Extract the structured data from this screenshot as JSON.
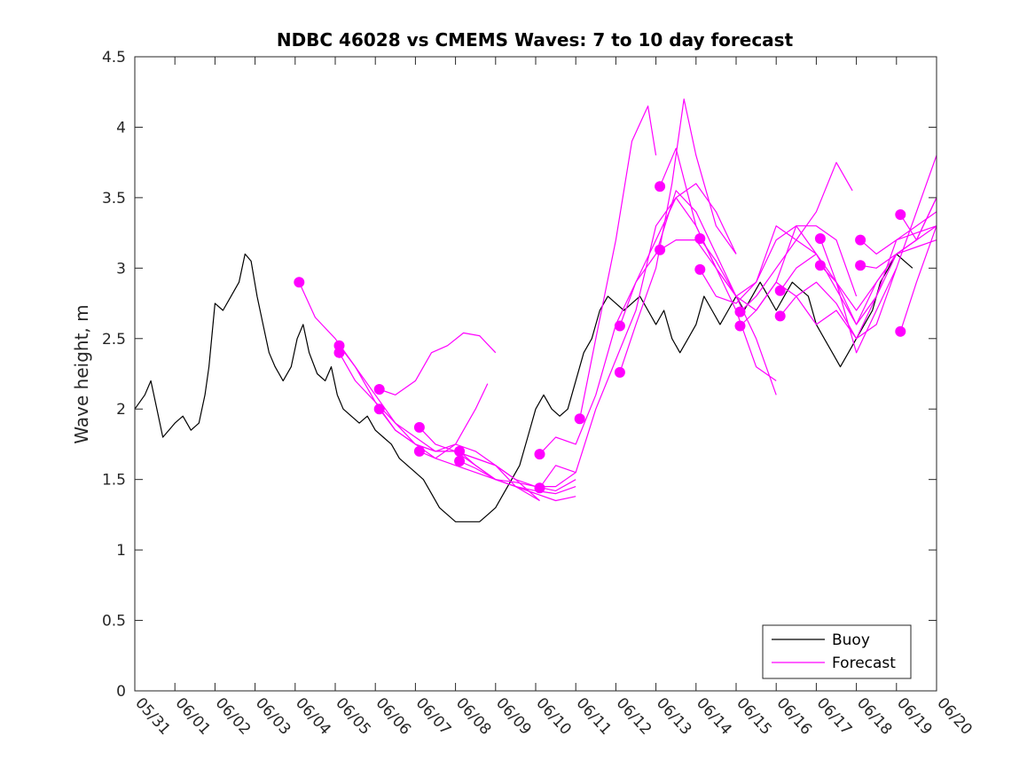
{
  "chart_data": {
    "type": "line",
    "title": "NDBC 46028 vs CMEMS Waves: 7 to 10 day forecast",
    "xlabel": "",
    "ylabel": "Wave height, m",
    "x_ticks": [
      "05/31",
      "06/01",
      "06/02",
      "06/03",
      "06/04",
      "06/05",
      "06/06",
      "06/07",
      "06/08",
      "06/09",
      "06/10",
      "06/11",
      "06/12",
      "06/13",
      "06/14",
      "06/15",
      "06/16",
      "06/17",
      "06/18",
      "06/19",
      "06/20"
    ],
    "x_range_days": [
      0,
      20
    ],
    "ylim": [
      0,
      4.5
    ],
    "y_ticks": [
      "0",
      "0.5",
      "1",
      "1.5",
      "2",
      "2.5",
      "3",
      "3.5",
      "4",
      "4.5"
    ],
    "grid": false,
    "legend": {
      "placement": "bottom-right",
      "entries": [
        "Buoy",
        "Forecast"
      ]
    },
    "colors": {
      "buoy": "#000000",
      "forecast": "#ff00ff"
    },
    "buoy": {
      "name": "Buoy",
      "x": [
        0,
        0.25,
        0.4,
        0.55,
        0.7,
        0.85,
        1.0,
        1.2,
        1.4,
        1.6,
        1.75,
        1.85,
        2.0,
        2.2,
        2.4,
        2.6,
        2.75,
        2.9,
        3.05,
        3.2,
        3.35,
        3.5,
        3.7,
        3.9,
        4.05,
        4.2,
        4.35,
        4.55,
        4.75,
        4.9,
        5.05,
        5.2,
        5.4,
        5.6,
        5.8,
        6.0,
        6.2,
        6.4,
        6.6,
        6.8,
        7.0,
        7.2,
        7.4,
        7.6,
        7.8,
        8.0,
        8.2,
        8.4,
        8.6,
        8.8,
        9.0,
        9.2,
        9.4,
        9.6,
        9.8,
        10.0,
        10.2,
        10.4,
        10.6,
        10.8,
        11.0,
        11.2,
        11.4,
        11.6,
        11.8,
        12.0,
        12.2,
        12.4,
        12.6,
        12.8,
        13.0,
        13.2,
        13.4,
        13.6,
        13.8,
        14.0,
        14.2,
        14.4,
        14.6,
        14.8,
        15.0,
        15.2,
        15.4,
        15.6,
        15.8,
        16.0,
        16.2,
        16.4,
        16.6,
        16.8,
        17.0,
        17.2,
        17.4,
        17.6,
        17.8,
        18.0,
        18.2,
        18.4,
        18.6,
        18.8,
        19.0,
        19.2,
        19.4
      ],
      "y": [
        2.0,
        2.1,
        2.2,
        2.0,
        1.8,
        1.85,
        1.9,
        1.95,
        1.85,
        1.9,
        2.1,
        2.3,
        2.75,
        2.7,
        2.8,
        2.9,
        3.1,
        3.05,
        2.8,
        2.6,
        2.4,
        2.3,
        2.2,
        2.3,
        2.5,
        2.6,
        2.4,
        2.25,
        2.2,
        2.3,
        2.1,
        2.0,
        1.95,
        1.9,
        1.95,
        1.85,
        1.8,
        1.75,
        1.65,
        1.6,
        1.55,
        1.5,
        1.4,
        1.3,
        1.25,
        1.2,
        1.2,
        1.2,
        1.2,
        1.25,
        1.3,
        1.4,
        1.5,
        1.6,
        1.8,
        2.0,
        2.1,
        2.0,
        1.95,
        2.0,
        2.2,
        2.4,
        2.5,
        2.7,
        2.8,
        2.75,
        2.7,
        2.75,
        2.8,
        2.7,
        2.6,
        2.7,
        2.5,
        2.4,
        2.5,
        2.6,
        2.8,
        2.7,
        2.6,
        2.7,
        2.8,
        2.7,
        2.8,
        2.9,
        2.8,
        2.7,
        2.8,
        2.9,
        2.85,
        2.8,
        2.6,
        2.5,
        2.4,
        2.3,
        2.4,
        2.5,
        2.6,
        2.7,
        2.9,
        3.0,
        3.1,
        3.05,
        3.0
      ]
    },
    "forecast_series": [
      {
        "x": [
          4.1,
          4.5,
          5.0,
          5.5,
          6.0,
          6.5,
          7.0,
          7.5,
          8.0,
          8.5,
          9.0,
          9.5,
          10.0
        ],
        "y": [
          2.9,
          2.65,
          2.5,
          2.3,
          2.1,
          1.9,
          1.75,
          1.65,
          1.6,
          1.55,
          1.5,
          1.45,
          1.4
        ]
      },
      {
        "x": [
          5.1,
          5.5,
          6.0,
          6.5,
          7.0,
          7.5,
          8.0,
          8.5,
          9.0,
          9.5,
          10.1
        ],
        "y": [
          2.45,
          2.3,
          2.05,
          1.9,
          1.8,
          1.7,
          1.7,
          1.65,
          1.6,
          1.5,
          1.35
        ]
      },
      {
        "x": [
          5.1,
          5.5,
          6.0,
          6.5,
          7.0,
          7.5,
          8.0,
          8.5,
          9.0,
          9.5,
          10.1
        ],
        "y": [
          2.4,
          2.2,
          2.05,
          1.85,
          1.75,
          1.7,
          1.75,
          1.7,
          1.6,
          1.45,
          1.35
        ]
      },
      {
        "x": [
          6.1,
          6.5,
          7.0,
          7.4,
          7.8,
          8.2,
          8.6,
          9.0
        ],
        "y": [
          2.14,
          2.1,
          2.2,
          2.4,
          2.45,
          2.54,
          2.52,
          2.4
        ]
      },
      {
        "x": [
          6.1,
          6.5,
          7.0,
          7.5,
          8.0,
          8.5,
          9.0,
          9.5,
          10.0,
          10.5,
          11.0
        ],
        "y": [
          2.0,
          1.85,
          1.75,
          1.7,
          1.7,
          1.6,
          1.5,
          1.45,
          1.4,
          1.35,
          1.38
        ]
      },
      {
        "x": [
          7.1,
          7.5,
          8.0,
          8.5,
          9.0,
          9.5,
          10.0,
          10.5,
          11.0
        ],
        "y": [
          1.87,
          1.75,
          1.7,
          1.65,
          1.6,
          1.5,
          1.45,
          1.45,
          1.55
        ]
      },
      {
        "x": [
          7.1,
          7.5,
          8.0,
          8.2,
          8.5,
          8.8
        ],
        "y": [
          1.7,
          1.65,
          1.75,
          1.85,
          2.0,
          2.18
        ]
      },
      {
        "x": [
          8.1,
          8.5,
          9.0,
          9.5,
          10.0,
          10.5,
          11.0
        ],
        "y": [
          1.7,
          1.6,
          1.5,
          1.45,
          1.42,
          1.4,
          1.45
        ]
      },
      {
        "x": [
          8.1,
          8.5,
          9.0,
          9.5,
          10.0,
          10.5,
          11.0
        ],
        "y": [
          1.63,
          1.58,
          1.5,
          1.48,
          1.45,
          1.42,
          1.5
        ]
      },
      {
        "x": [
          10.1,
          10.5,
          11.0,
          11.5,
          12.0,
          12.5,
          13.0,
          13.5,
          14.0,
          14.5,
          15.0
        ],
        "y": [
          1.68,
          1.8,
          1.75,
          2.1,
          2.6,
          2.9,
          3.2,
          3.5,
          3.6,
          3.4,
          3.1
        ]
      },
      {
        "x": [
          10.1,
          10.5,
          11.0,
          11.5,
          12.0,
          12.5,
          13.0,
          13.5,
          14.0,
          14.5,
          15.0
        ],
        "y": [
          1.44,
          1.6,
          1.55,
          2.0,
          2.35,
          2.7,
          3.3,
          3.5,
          3.3,
          3.0,
          2.8
        ]
      },
      {
        "x": [
          11.1,
          11.5,
          12.0,
          12.4,
          12.8,
          13.0
        ],
        "y": [
          1.93,
          2.5,
          3.2,
          3.9,
          4.15,
          3.8
        ]
      },
      {
        "x": [
          12.1,
          12.5,
          13.0,
          13.5,
          14.0,
          14.5,
          15.0,
          15.5,
          16.0
        ],
        "y": [
          2.59,
          2.9,
          3.1,
          3.55,
          3.4,
          3.1,
          2.8,
          2.5,
          2.1
        ]
      },
      {
        "x": [
          12.1,
          12.5,
          13.0,
          13.4,
          13.7,
          14.0,
          14.5,
          15.0
        ],
        "y": [
          2.26,
          2.6,
          3.0,
          3.6,
          4.2,
          3.8,
          3.3,
          3.1
        ]
      },
      {
        "x": [
          13.1,
          13.5,
          14.0,
          14.5,
          15.0,
          15.5,
          16.0
        ],
        "y": [
          3.58,
          3.85,
          3.3,
          3.0,
          2.7,
          2.3,
          2.2
        ]
      },
      {
        "x": [
          13.1,
          13.5,
          14.0,
          14.5,
          15.0,
          15.5,
          16.0,
          16.5,
          17.0
        ],
        "y": [
          3.13,
          3.2,
          3.2,
          3.0,
          2.8,
          2.7,
          2.9,
          3.3,
          3.1
        ]
      },
      {
        "x": [
          14.1,
          14.5,
          15.0,
          15.5,
          16.0,
          16.5,
          17.0,
          17.5,
          17.9
        ],
        "y": [
          3.21,
          3.05,
          2.8,
          2.9,
          3.3,
          3.2,
          3.4,
          3.75,
          3.55
        ]
      },
      {
        "x": [
          14.1,
          14.5,
          15.0,
          15.5,
          16.0,
          16.5,
          17.0,
          17.5,
          18.0
        ],
        "y": [
          2.99,
          2.8,
          2.75,
          2.9,
          3.2,
          3.3,
          3.3,
          3.2,
          2.8
        ]
      },
      {
        "x": [
          15.1,
          15.5,
          16.0,
          16.5,
          17.0,
          17.5,
          18.0,
          18.5,
          19.0
        ],
        "y": [
          2.69,
          2.8,
          3.0,
          3.2,
          3.1,
          2.9,
          2.6,
          2.8,
          3.1
        ]
      },
      {
        "x": [
          15.1,
          15.5,
          16.0,
          16.5,
          17.0,
          17.5,
          18.0,
          18.5,
          19.0
        ],
        "y": [
          2.59,
          2.7,
          2.9,
          2.8,
          2.6,
          2.7,
          2.5,
          2.6,
          3.0
        ]
      },
      {
        "x": [
          16.1,
          16.5,
          17.0,
          17.5,
          18.0,
          18.5,
          19.0,
          19.5,
          20.0
        ],
        "y": [
          2.84,
          3.0,
          3.1,
          2.85,
          2.6,
          2.9,
          3.1,
          3.2,
          3.3
        ]
      },
      {
        "x": [
          16.1,
          16.5,
          17.0,
          17.5,
          18.0,
          18.5,
          19.0,
          19.5,
          20.0
        ],
        "y": [
          2.66,
          2.8,
          2.9,
          2.75,
          2.5,
          2.8,
          3.2,
          3.3,
          3.4
        ]
      },
      {
        "x": [
          17.1,
          17.5,
          18.0,
          18.5,
          19.0,
          19.5,
          20.0
        ],
        "y": [
          3.21,
          2.9,
          2.4,
          2.7,
          3.0,
          3.4,
          3.8
        ]
      },
      {
        "x": [
          17.1,
          17.5,
          18.0,
          18.5,
          19.0,
          19.5,
          20.0
        ],
        "y": [
          3.02,
          2.9,
          2.7,
          2.9,
          3.1,
          3.2,
          3.5
        ]
      },
      {
        "x": [
          18.1,
          18.5,
          19.0,
          19.5,
          20.0
        ],
        "y": [
          3.2,
          3.1,
          3.2,
          3.25,
          3.3
        ]
      },
      {
        "x": [
          18.1,
          18.5,
          19.0,
          19.5,
          20.0
        ],
        "y": [
          3.02,
          3.0,
          3.1,
          3.15,
          3.2
        ]
      },
      {
        "x": [
          19.1,
          19.5,
          20.0
        ],
        "y": [
          3.38,
          3.2,
          3.5
        ]
      },
      {
        "x": [
          19.1,
          19.5,
          20.0
        ],
        "y": [
          2.55,
          2.9,
          3.3
        ]
      }
    ]
  }
}
